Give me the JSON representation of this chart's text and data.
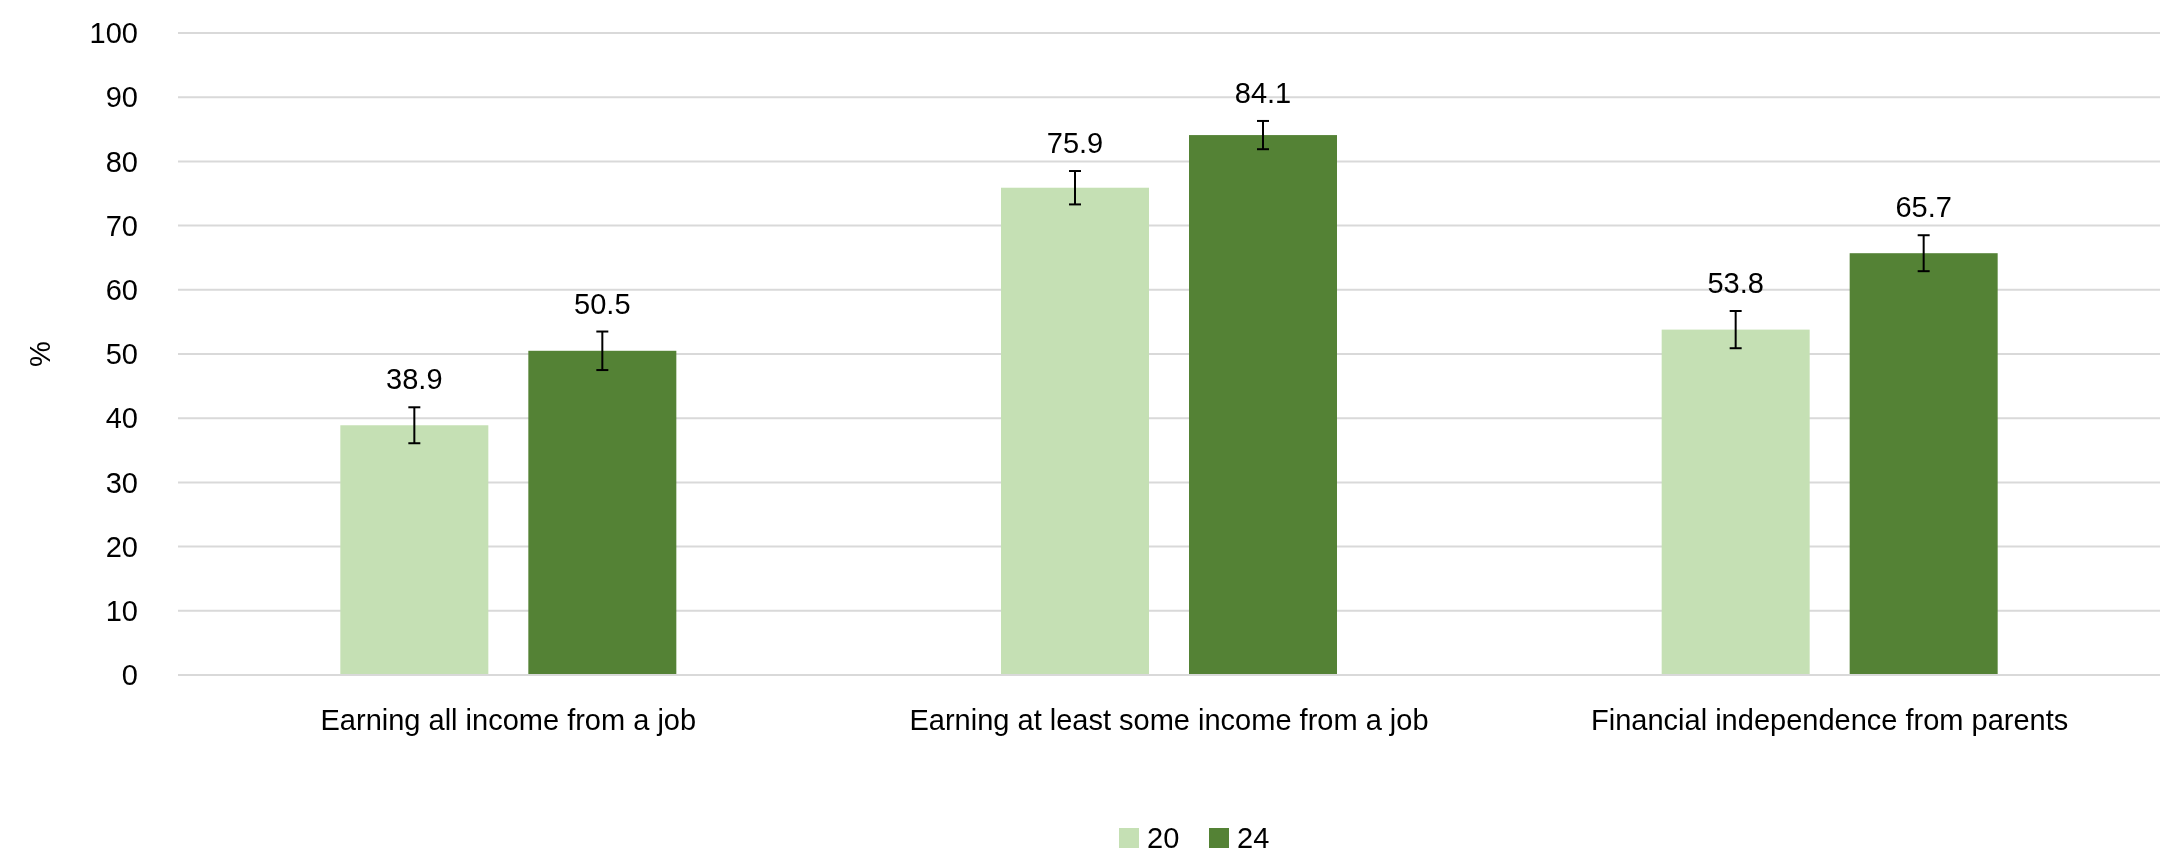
{
  "chart_data": {
    "type": "bar",
    "ylabel": "%",
    "categories": [
      "Earning all income from a job",
      "Earning at least some income from a job",
      "Financial independence from parents"
    ],
    "series": [
      {
        "name": "20",
        "color": "#c5e0b4",
        "values": [
          38.9,
          75.9,
          53.8
        ],
        "errors": [
          2.8,
          2.6,
          2.9
        ]
      },
      {
        "name": "24",
        "color": "#548235",
        "values": [
          50.5,
          84.1,
          65.7
        ],
        "errors": [
          3.0,
          2.2,
          2.8
        ]
      }
    ],
    "ylim": [
      0,
      100
    ],
    "yticks": [
      0,
      10,
      20,
      30,
      40,
      50,
      60,
      70,
      80,
      90,
      100
    ],
    "grid": "y",
    "legend": "bottom",
    "data_labels": true
  }
}
